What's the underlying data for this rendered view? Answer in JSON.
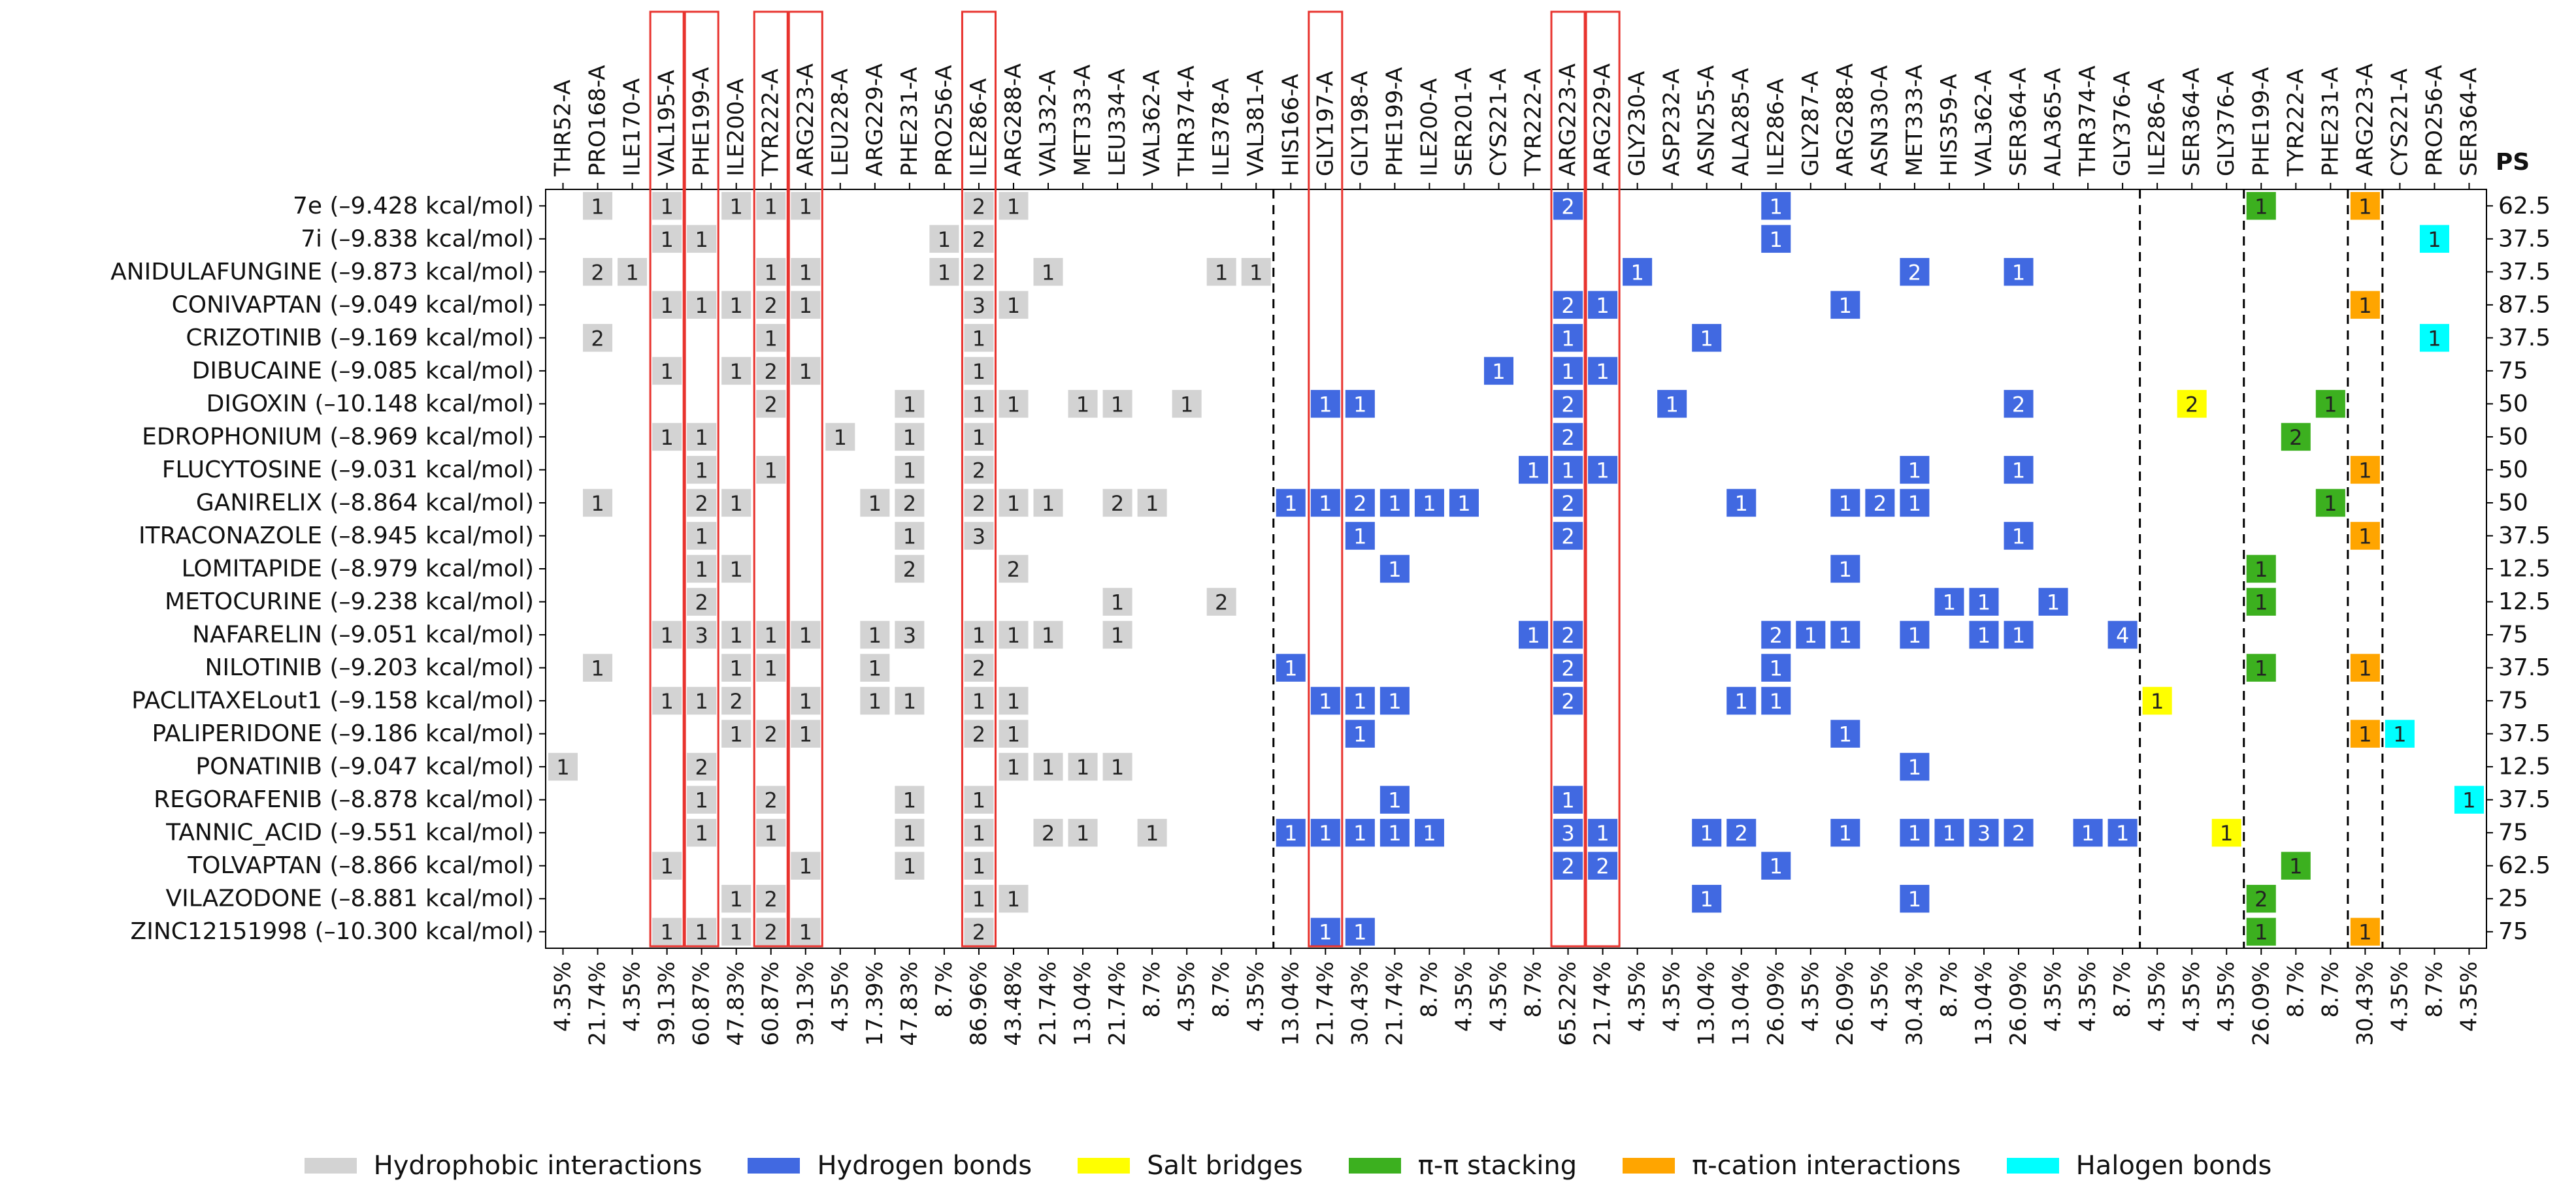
{
  "chart_data": {
    "type": "heatmap",
    "ps_header": "PS",
    "columns": [
      {
        "label": "THR52-A",
        "pct": "4.35%",
        "type": "hydrophobic"
      },
      {
        "label": "PRO168-A",
        "pct": "21.74%",
        "type": "hydrophobic"
      },
      {
        "label": "ILE170-A",
        "pct": "4.35%",
        "type": "hydrophobic"
      },
      {
        "label": "VAL195-A",
        "pct": "39.13%",
        "type": "hydrophobic",
        "highlight": true
      },
      {
        "label": "PHE199-A",
        "pct": "60.87%",
        "type": "hydrophobic",
        "highlight": true
      },
      {
        "label": "ILE200-A",
        "pct": "47.83%",
        "type": "hydrophobic"
      },
      {
        "label": "TYR222-A",
        "pct": "60.87%",
        "type": "hydrophobic",
        "highlight": true
      },
      {
        "label": "ARG223-A",
        "pct": "39.13%",
        "type": "hydrophobic",
        "highlight": true
      },
      {
        "label": "LEU228-A",
        "pct": "4.35%",
        "type": "hydrophobic"
      },
      {
        "label": "ARG229-A",
        "pct": "17.39%",
        "type": "hydrophobic"
      },
      {
        "label": "PHE231-A",
        "pct": "47.83%",
        "type": "hydrophobic"
      },
      {
        "label": "PRO256-A",
        "pct": "8.7%",
        "type": "hydrophobic"
      },
      {
        "label": "ILE286-A",
        "pct": "86.96%",
        "type": "hydrophobic",
        "highlight": true
      },
      {
        "label": "ARG288-A",
        "pct": "43.48%",
        "type": "hydrophobic"
      },
      {
        "label": "VAL332-A",
        "pct": "21.74%",
        "type": "hydrophobic"
      },
      {
        "label": "MET333-A",
        "pct": "13.04%",
        "type": "hydrophobic"
      },
      {
        "label": "LEU334-A",
        "pct": "21.74%",
        "type": "hydrophobic"
      },
      {
        "label": "VAL362-A",
        "pct": "8.7%",
        "type": "hydrophobic"
      },
      {
        "label": "THR374-A",
        "pct": "4.35%",
        "type": "hydrophobic"
      },
      {
        "label": "ILE378-A",
        "pct": "8.7%",
        "type": "hydrophobic"
      },
      {
        "label": "VAL381-A",
        "pct": "4.35%",
        "type": "hydrophobic"
      },
      {
        "label": "HIS166-A",
        "pct": "13.04%",
        "type": "hbond"
      },
      {
        "label": "GLY197-A",
        "pct": "21.74%",
        "type": "hbond",
        "highlight": true
      },
      {
        "label": "GLY198-A",
        "pct": "30.43%",
        "type": "hbond"
      },
      {
        "label": "PHE199-A",
        "pct": "21.74%",
        "type": "hbond"
      },
      {
        "label": "ILE200-A",
        "pct": "8.7%",
        "type": "hbond"
      },
      {
        "label": "SER201-A",
        "pct": "4.35%",
        "type": "hbond"
      },
      {
        "label": "CYS221-A",
        "pct": "4.35%",
        "type": "hbond"
      },
      {
        "label": "TYR222-A",
        "pct": "8.7%",
        "type": "hbond"
      },
      {
        "label": "ARG223-A",
        "pct": "65.22%",
        "type": "hbond",
        "highlight": true
      },
      {
        "label": "ARG229-A",
        "pct": "21.74%",
        "type": "hbond",
        "highlight": true
      },
      {
        "label": "GLY230-A",
        "pct": "4.35%",
        "type": "hbond"
      },
      {
        "label": "ASP232-A",
        "pct": "4.35%",
        "type": "hbond"
      },
      {
        "label": "ASN255-A",
        "pct": "13.04%",
        "type": "hbond"
      },
      {
        "label": "ALA285-A",
        "pct": "13.04%",
        "type": "hbond"
      },
      {
        "label": "ILE286-A",
        "pct": "26.09%",
        "type": "hbond"
      },
      {
        "label": "GLY287-A",
        "pct": "4.35%",
        "type": "hbond"
      },
      {
        "label": "ARG288-A",
        "pct": "26.09%",
        "type": "hbond"
      },
      {
        "label": "ASN330-A",
        "pct": "4.35%",
        "type": "hbond"
      },
      {
        "label": "MET333-A",
        "pct": "30.43%",
        "type": "hbond"
      },
      {
        "label": "HIS359-A",
        "pct": "8.7%",
        "type": "hbond"
      },
      {
        "label": "VAL362-A",
        "pct": "13.04%",
        "type": "hbond"
      },
      {
        "label": "SER364-A",
        "pct": "26.09%",
        "type": "hbond"
      },
      {
        "label": "ALA365-A",
        "pct": "4.35%",
        "type": "hbond"
      },
      {
        "label": "THR374-A",
        "pct": "4.35%",
        "type": "hbond"
      },
      {
        "label": "GLY376-A",
        "pct": "8.7%",
        "type": "hbond"
      },
      {
        "label": "ILE286-A",
        "pct": "4.35%",
        "type": "salt"
      },
      {
        "label": "SER364-A",
        "pct": "4.35%",
        "type": "salt"
      },
      {
        "label": "GLY376-A",
        "pct": "4.35%",
        "type": "salt"
      },
      {
        "label": "PHE199-A",
        "pct": "26.09%",
        "type": "pipi"
      },
      {
        "label": "TYR222-A",
        "pct": "8.7%",
        "type": "pipi"
      },
      {
        "label": "PHE231-A",
        "pct": "8.7%",
        "type": "pipi"
      },
      {
        "label": "ARG223-A",
        "pct": "30.43%",
        "type": "pication"
      },
      {
        "label": "CYS221-A",
        "pct": "4.35%",
        "type": "halogen"
      },
      {
        "label": "PRO256-A",
        "pct": "8.7%",
        "type": "halogen"
      },
      {
        "label": "SER364-A",
        "pct": "4.35%",
        "type": "halogen"
      }
    ],
    "rows": [
      {
        "label": "7e (–9.428 kcal/mol)",
        "ps": "62.5",
        "cells": {
          "1": 1,
          "3": 1,
          "5": 1,
          "6": 1,
          "7": 1,
          "12": 2,
          "13": 1,
          "29": 2,
          "35": 1,
          "49": 1,
          "52": 1
        }
      },
      {
        "label": "7i (–9.838 kcal/mol)",
        "ps": "37.5",
        "cells": {
          "3": 1,
          "4": 1,
          "11": 1,
          "12": 2,
          "35": 1,
          "54": 1
        }
      },
      {
        "label": "ANIDULAFUNGINE (–9.873 kcal/mol)",
        "ps": "37.5",
        "cells": {
          "1": 2,
          "2": 1,
          "6": 1,
          "7": 1,
          "11": 1,
          "12": 2,
          "14": 1,
          "19": 1,
          "20": 1,
          "31": 1,
          "39": 2,
          "42": 1
        }
      },
      {
        "label": "CONIVAPTAN (–9.049 kcal/mol)",
        "ps": "87.5",
        "cells": {
          "3": 1,
          "4": 1,
          "5": 1,
          "6": 2,
          "7": 1,
          "12": 3,
          "13": 1,
          "29": 2,
          "30": 1,
          "37": 1,
          "52": 1
        }
      },
      {
        "label": "CRIZOTINIB (–9.169 kcal/mol)",
        "ps": "37.5",
        "cells": {
          "1": 2,
          "6": 1,
          "12": 1,
          "29": 1,
          "33": 1,
          "54": 1
        }
      },
      {
        "label": "DIBUCAINE (–9.085 kcal/mol)",
        "ps": "75",
        "cells": {
          "3": 1,
          "5": 1,
          "6": 2,
          "7": 1,
          "12": 1,
          "27": 1,
          "29": 1,
          "30": 1
        }
      },
      {
        "label": "DIGOXIN (–10.148 kcal/mol)",
        "ps": "50",
        "cells": {
          "6": 2,
          "10": 1,
          "12": 1,
          "13": 1,
          "15": 1,
          "16": 1,
          "18": 1,
          "22": 1,
          "23": 1,
          "29": 2,
          "32": 1,
          "42": 2,
          "47": 2,
          "51": 1
        }
      },
      {
        "label": "EDROPHONIUM (–8.969 kcal/mol)",
        "ps": "50",
        "cells": {
          "3": 1,
          "4": 1,
          "8": 1,
          "10": 1,
          "12": 1,
          "29": 2,
          "50": 2
        }
      },
      {
        "label": "FLUCYTOSINE (–9.031 kcal/mol)",
        "ps": "50",
        "cells": {
          "4": 1,
          "6": 1,
          "10": 1,
          "12": 2,
          "28": 1,
          "29": 1,
          "30": 1,
          "39": 1,
          "42": 1,
          "52": 1
        }
      },
      {
        "label": "GANIRELIX (–8.864 kcal/mol)",
        "ps": "50",
        "cells": {
          "1": 1,
          "4": 2,
          "5": 1,
          "9": 1,
          "10": 2,
          "12": 2,
          "13": 1,
          "14": 1,
          "16": 2,
          "17": 1,
          "21": 1,
          "22": 1,
          "23": 2,
          "24": 1,
          "25": 1,
          "26": 1,
          "29": 2,
          "34": 1,
          "37": 1,
          "38": 2,
          "39": 1,
          "51": 1
        }
      },
      {
        "label": "ITRACONAZOLE (–8.945 kcal/mol)",
        "ps": "37.5",
        "cells": {
          "4": 1,
          "10": 1,
          "12": 3,
          "23": 1,
          "29": 2,
          "42": 1,
          "52": 1
        }
      },
      {
        "label": "LOMITAPIDE (–8.979 kcal/mol)",
        "ps": "12.5",
        "cells": {
          "4": 1,
          "5": 1,
          "10": 2,
          "13": 2,
          "24": 1,
          "37": 1,
          "49": 1
        }
      },
      {
        "label": "METOCURINE (–9.238 kcal/mol)",
        "ps": "12.5",
        "cells": {
          "4": 2,
          "16": 1,
          "19": 2,
          "40": 1,
          "41": 1,
          "43": 1,
          "49": 1
        }
      },
      {
        "label": "NAFARELIN (–9.051 kcal/mol)",
        "ps": "75",
        "cells": {
          "3": 1,
          "4": 3,
          "5": 1,
          "6": 1,
          "7": 1,
          "9": 1,
          "10": 3,
          "12": 1,
          "13": 1,
          "14": 1,
          "16": 1,
          "28": 1,
          "29": 2,
          "35": 2,
          "36": 1,
          "37": 1,
          "39": 1,
          "41": 1,
          "42": 1,
          "45": 4
        }
      },
      {
        "label": "NILOTINIB (–9.203 kcal/mol)",
        "ps": "37.5",
        "cells": {
          "1": 1,
          "5": 1,
          "6": 1,
          "9": 1,
          "12": 2,
          "21": 1,
          "29": 2,
          "35": 1,
          "49": 1,
          "52": 1
        }
      },
      {
        "label": "PACLITAXELout1 (–9.158 kcal/mol)",
        "ps": "75",
        "cells": {
          "3": 1,
          "4": 1,
          "5": 2,
          "7": 1,
          "9": 1,
          "10": 1,
          "12": 1,
          "13": 1,
          "22": 1,
          "23": 1,
          "24": 1,
          "29": 2,
          "34": 1,
          "35": 1,
          "46": 1
        }
      },
      {
        "label": "PALIPERIDONE (–9.186 kcal/mol)",
        "ps": "37.5",
        "cells": {
          "5": 1,
          "6": 2,
          "7": 1,
          "12": 2,
          "13": 1,
          "23": 1,
          "37": 1,
          "52": 1,
          "53": 1
        }
      },
      {
        "label": "PONATINIB (–9.047 kcal/mol)",
        "ps": "12.5",
        "cells": {
          "0": 1,
          "4": 2,
          "13": 1,
          "14": 1,
          "15": 1,
          "16": 1,
          "39": 1
        }
      },
      {
        "label": "REGORAFENIB (–8.878 kcal/mol)",
        "ps": "37.5",
        "cells": {
          "4": 1,
          "6": 2,
          "10": 1,
          "12": 1,
          "24": 1,
          "29": 1,
          "55": 1
        }
      },
      {
        "label": "TANNIC_ACID (–9.551 kcal/mol)",
        "ps": "75",
        "cells": {
          "4": 1,
          "6": 1,
          "10": 1,
          "12": 1,
          "14": 2,
          "15": 1,
          "17": 1,
          "21": 1,
          "22": 1,
          "23": 1,
          "24": 1,
          "25": 1,
          "29": 3,
          "30": 1,
          "33": 1,
          "34": 2,
          "37": 1,
          "39": 1,
          "40": 1,
          "41": 3,
          "42": 2,
          "44": 1,
          "45": 1,
          "48": 1
        }
      },
      {
        "label": "TOLVAPTAN (–8.866 kcal/mol)",
        "ps": "62.5",
        "cells": {
          "3": 1,
          "7": 1,
          "10": 1,
          "12": 1,
          "29": 2,
          "30": 2,
          "35": 1,
          "50": 1
        }
      },
      {
        "label": "VILAZODONE (–8.881 kcal/mol)",
        "ps": "25",
        "cells": {
          "5": 1,
          "6": 2,
          "12": 1,
          "13": 1,
          "33": 1,
          "39": 1,
          "49": 2
        }
      },
      {
        "label": "ZINC12151998 (–10.300 kcal/mol)",
        "ps": "75",
        "cells": {
          "3": 1,
          "4": 1,
          "5": 1,
          "6": 2,
          "7": 1,
          "12": 2,
          "22": 1,
          "23": 1,
          "49": 1,
          "52": 1
        }
      }
    ],
    "colors": {
      "hydrophobic": "#d3d3d3",
      "hbond": "#4169e1",
      "salt": "#ffff00",
      "pipi": "#3cb01f",
      "pication": "#ffa500",
      "halogen": "#00ffff",
      "highlight": "#e8332e"
    },
    "legend": [
      {
        "type": "hydrophobic",
        "label": "Hydrophobic interactions"
      },
      {
        "type": "hbond",
        "label": "Hydrogen bonds"
      },
      {
        "type": "salt",
        "label": "Salt bridges"
      },
      {
        "type": "pipi",
        "label": "π-π stacking"
      },
      {
        "type": "pication",
        "label": "π-cation interactions"
      },
      {
        "type": "halogen",
        "label": "Halogen bonds"
      }
    ]
  }
}
